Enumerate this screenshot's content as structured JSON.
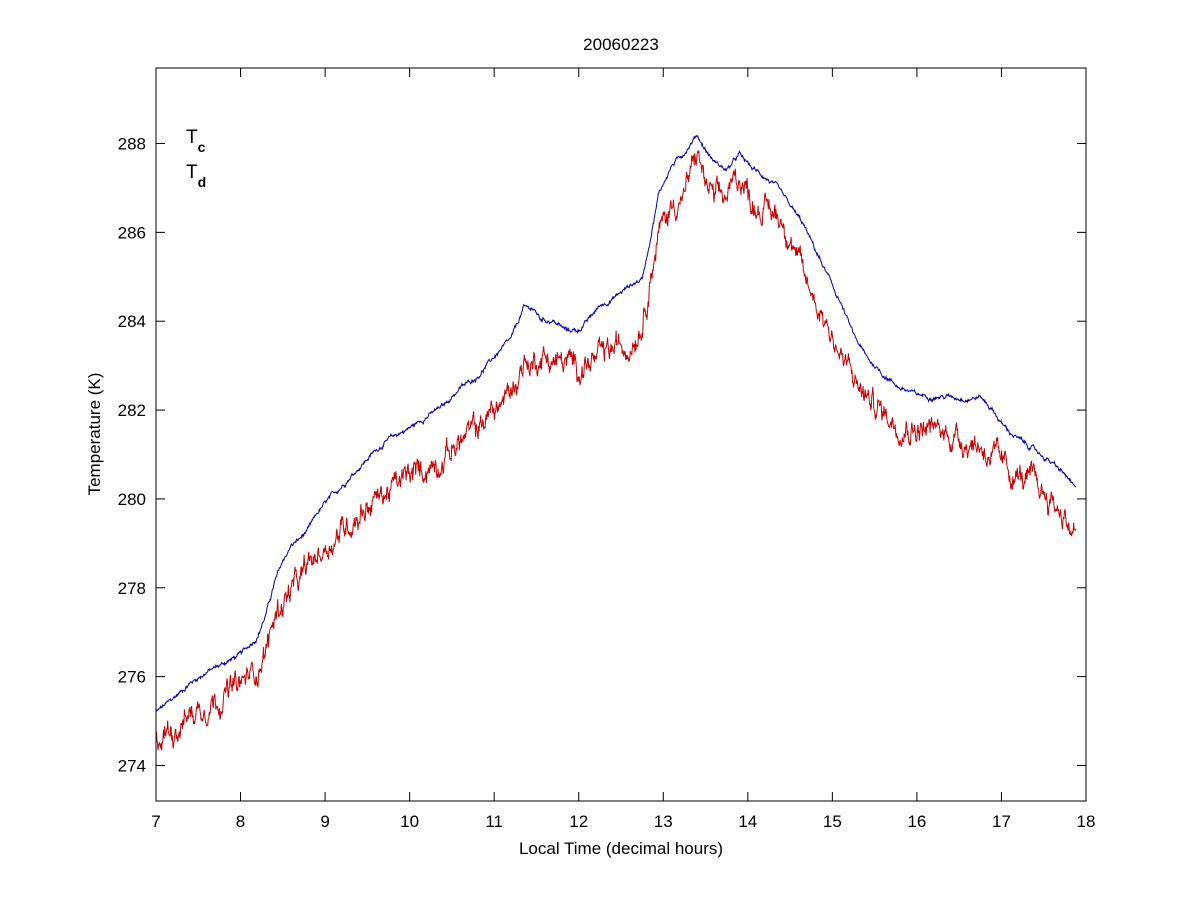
{
  "chart_data": {
    "type": "line",
    "title": "20060223",
    "xlabel": "Local Time (decimal hours)",
    "ylabel": "Temperature (K)",
    "xlim": [
      7,
      18
    ],
    "ylim": [
      273.2,
      289.7
    ],
    "xticks": [
      7,
      8,
      9,
      10,
      11,
      12,
      13,
      14,
      15,
      16,
      17,
      18
    ],
    "yticks": [
      274,
      276,
      278,
      280,
      282,
      284,
      286,
      288
    ],
    "grid": false,
    "legend_position": "top-left",
    "series": [
      {
        "name": "T",
        "subscript": "c",
        "color": "#0000b0",
        "x": [
          7.0,
          7.2,
          7.4,
          7.6,
          7.8,
          8.0,
          8.2,
          8.3,
          8.4,
          8.5,
          8.6,
          8.7,
          8.8,
          8.9,
          9.0,
          9.2,
          9.4,
          9.6,
          9.8,
          10.0,
          10.2,
          10.4,
          10.6,
          10.8,
          11.0,
          11.2,
          11.35,
          11.45,
          11.55,
          11.7,
          11.85,
          12.0,
          12.1,
          12.25,
          12.4,
          12.6,
          12.75,
          12.85,
          12.95,
          13.1,
          13.25,
          13.4,
          13.5,
          13.6,
          13.75,
          13.9,
          14.05,
          14.2,
          14.35,
          14.5,
          14.65,
          14.8,
          14.95,
          15.1,
          15.25,
          15.4,
          15.6,
          15.8,
          16.0,
          16.2,
          16.4,
          16.6,
          16.75,
          16.9,
          17.0,
          17.1,
          17.2,
          17.4,
          17.6,
          17.75,
          17.88
        ],
        "y": [
          275.2,
          275.5,
          275.85,
          276.1,
          276.3,
          276.5,
          276.9,
          277.4,
          278.1,
          278.6,
          278.95,
          279.1,
          279.3,
          279.65,
          279.9,
          280.3,
          280.7,
          281.1,
          281.4,
          281.6,
          281.85,
          282.1,
          282.5,
          282.75,
          283.2,
          283.6,
          284.3,
          284.3,
          284.05,
          284.0,
          283.8,
          283.8,
          284.0,
          284.35,
          284.5,
          284.8,
          284.95,
          285.9,
          286.9,
          287.5,
          287.8,
          288.2,
          287.85,
          287.6,
          287.4,
          287.75,
          287.45,
          287.25,
          287.0,
          286.6,
          286.2,
          285.6,
          285.0,
          284.4,
          283.7,
          283.2,
          282.8,
          282.5,
          282.35,
          282.3,
          282.3,
          282.25,
          282.3,
          282.0,
          281.7,
          281.5,
          281.35,
          281.1,
          280.8,
          280.55,
          280.2
        ]
      },
      {
        "name": "T",
        "subscript": "d",
        "color": "#cc0000",
        "x": [
          7.0,
          7.2,
          7.4,
          7.6,
          7.8,
          8.0,
          8.2,
          8.3,
          8.4,
          8.5,
          8.6,
          8.7,
          8.8,
          8.9,
          9.0,
          9.2,
          9.4,
          9.6,
          9.8,
          10.0,
          10.2,
          10.4,
          10.6,
          10.8,
          11.0,
          11.2,
          11.35,
          11.45,
          11.55,
          11.7,
          11.85,
          12.0,
          12.1,
          12.25,
          12.4,
          12.6,
          12.75,
          12.85,
          12.95,
          13.1,
          13.25,
          13.4,
          13.5,
          13.6,
          13.75,
          13.9,
          14.05,
          14.2,
          14.35,
          14.5,
          14.65,
          14.8,
          14.95,
          15.1,
          15.25,
          15.4,
          15.6,
          15.8,
          16.0,
          16.2,
          16.4,
          16.6,
          16.75,
          16.9,
          17.0,
          17.1,
          17.2,
          17.4,
          17.6,
          17.75,
          17.88
        ],
        "y": [
          274.6,
          274.85,
          275.15,
          275.4,
          275.6,
          275.8,
          276.2,
          276.6,
          277.3,
          277.7,
          277.95,
          278.1,
          278.45,
          278.7,
          278.9,
          279.3,
          279.7,
          280.0,
          280.25,
          280.5,
          280.7,
          280.95,
          281.3,
          281.6,
          282.0,
          282.4,
          283.1,
          283.0,
          283.25,
          283.1,
          283.05,
          283.0,
          283.05,
          283.15,
          283.35,
          283.5,
          284.0,
          285.1,
          286.0,
          286.6,
          286.85,
          287.8,
          287.1,
          286.7,
          286.8,
          287.3,
          286.7,
          286.5,
          286.4,
          286.0,
          285.0,
          284.5,
          283.9,
          283.2,
          282.7,
          282.3,
          281.95,
          281.7,
          281.6,
          281.55,
          281.45,
          281.3,
          281.2,
          280.95,
          280.75,
          280.6,
          280.5,
          280.3,
          279.95,
          279.6,
          279.15
        ]
      }
    ]
  }
}
